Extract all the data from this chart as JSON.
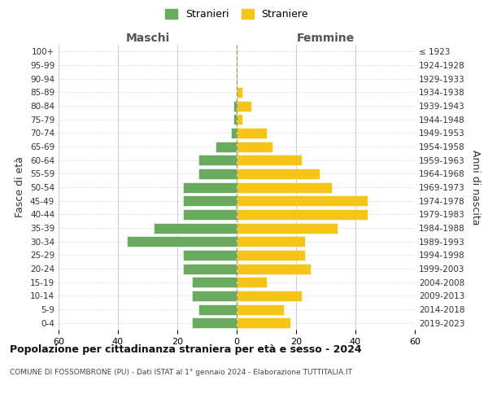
{
  "age_groups": [
    "100+",
    "95-99",
    "90-94",
    "85-89",
    "80-84",
    "75-79",
    "70-74",
    "65-69",
    "60-64",
    "55-59",
    "50-54",
    "45-49",
    "40-44",
    "35-39",
    "30-34",
    "25-29",
    "20-24",
    "15-19",
    "10-14",
    "5-9",
    "0-4"
  ],
  "birth_years": [
    "≤ 1923",
    "1924-1928",
    "1929-1933",
    "1934-1938",
    "1939-1943",
    "1944-1948",
    "1949-1953",
    "1954-1958",
    "1959-1963",
    "1964-1968",
    "1969-1973",
    "1974-1978",
    "1979-1983",
    "1984-1988",
    "1989-1993",
    "1994-1998",
    "1999-2003",
    "2004-2008",
    "2009-2013",
    "2014-2018",
    "2019-2023"
  ],
  "maschi": [
    0,
    0,
    0,
    0,
    1,
    1,
    2,
    7,
    13,
    13,
    18,
    18,
    18,
    28,
    37,
    18,
    18,
    15,
    15,
    13,
    15
  ],
  "femmine": [
    0,
    0,
    0,
    2,
    5,
    2,
    10,
    12,
    22,
    28,
    32,
    44,
    44,
    34,
    23,
    23,
    25,
    10,
    22,
    16,
    18
  ],
  "maschi_color": "#6aaa5e",
  "femmine_color": "#f5c518",
  "background_color": "#ffffff",
  "grid_color": "#cccccc",
  "title": "Popolazione per cittadinanza straniera per età e sesso - 2024",
  "subtitle": "COMUNE DI FOSSOMBRONE (PU) - Dati ISTAT al 1° gennaio 2024 - Elaborazione TUTTITALIA.IT",
  "xlabel_left": "Maschi",
  "xlabel_right": "Femmine",
  "ylabel_left": "Fasce di età",
  "ylabel_right": "Anni di nascita",
  "legend_maschi": "Stranieri",
  "legend_femmine": "Straniere",
  "xlim": 60
}
